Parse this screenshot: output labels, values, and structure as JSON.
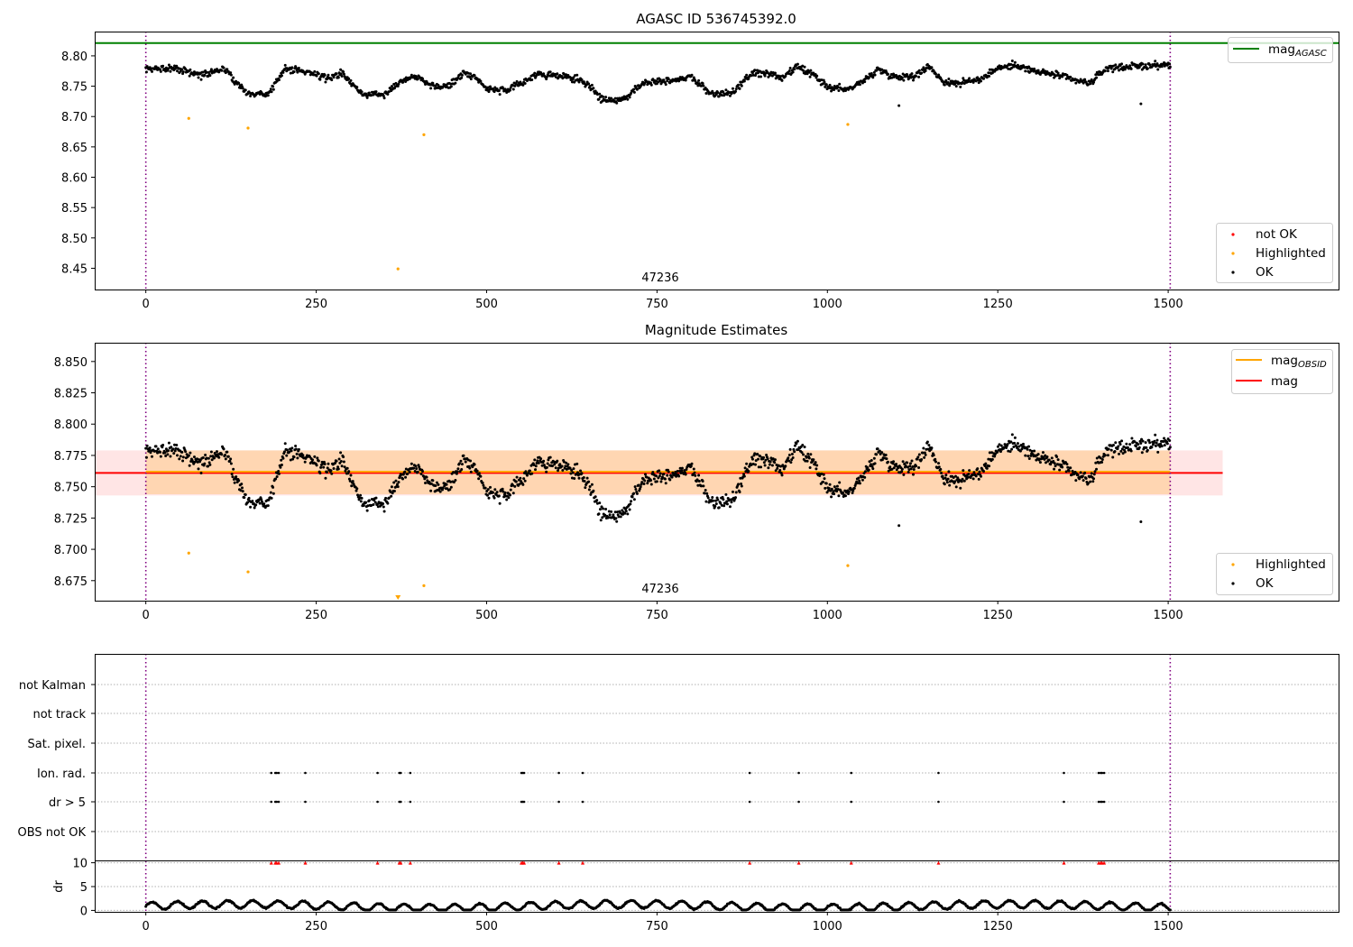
{
  "chart_data": [
    {
      "type": "scatter",
      "title": "AGASC ID 536745392.0",
      "obsid_label": "47236",
      "xlim": [
        -75,
        1750
      ],
      "ylim": [
        8.415,
        8.84
      ],
      "x_ticks": [
        0,
        250,
        500,
        750,
        1000,
        1250,
        1500
      ],
      "y_ticks": [
        8.45,
        8.5,
        8.55,
        8.6,
        8.65,
        8.7,
        8.75,
        8.8
      ],
      "obs_start": 0,
      "obs_end": 1503,
      "mag_agasc": 8.821,
      "series": [
        {
          "name": "not OK",
          "color": "#ff0000",
          "points": []
        },
        {
          "name": "Highlighted",
          "color": "#ffa500",
          "points": [
            [
              63,
              8.697
            ],
            [
              150,
              8.681
            ],
            [
              370,
              8.449
            ],
            [
              408,
              8.67
            ],
            [
              1030,
              8.687
            ]
          ]
        },
        {
          "name": "OK",
          "color": "#000000",
          "n": 1500,
          "outliers": [
            [
              1105,
              8.718
            ],
            [
              1460,
              8.721
            ]
          ]
        }
      ],
      "legend_line": {
        "label": "mag",
        "sub": "AGASC",
        "color": "#008000",
        "position": "top-right"
      },
      "legend_points": {
        "position": "lower-right"
      }
    },
    {
      "type": "scatter",
      "title": "Magnitude Estimates",
      "obsid_label": "47236",
      "xlim": [
        -75,
        1750
      ],
      "ylim": [
        8.659,
        8.865
      ],
      "x_ticks": [
        0,
        250,
        500,
        750,
        1000,
        1250,
        1500
      ],
      "y_ticks": [
        8.675,
        8.7,
        8.725,
        8.75,
        8.775,
        8.8,
        8.825,
        8.85
      ],
      "obs_start": 0,
      "obs_end": 1503,
      "mag": {
        "value": 8.761,
        "band": [
          8.743,
          8.779
        ],
        "x_end": 1580,
        "color": "#ff0000"
      },
      "mag_obsid": {
        "value": 8.762,
        "band": [
          8.744,
          8.779
        ],
        "x_end": 1503,
        "color": "#ffa500"
      },
      "series": [
        {
          "name": "Highlighted",
          "color": "#ffa500",
          "points": [
            [
              63,
              8.697
            ],
            [
              150,
              8.682
            ],
            [
              408,
              8.671
            ],
            [
              1030,
              8.687
            ]
          ],
          "offscale": [
            [
              370,
              8.449
            ]
          ]
        },
        {
          "name": "OK",
          "color": "#000000",
          "n": 1500,
          "outliers": [
            [
              1105,
              8.719
            ],
            [
              1460,
              8.722
            ]
          ]
        }
      ],
      "legend_lines": [
        {
          "label": "mag",
          "sub": "OBSID",
          "color": "#ffa500"
        },
        {
          "label": "mag",
          "sub": "",
          "color": "#ff0000"
        }
      ],
      "legend_points": {
        "position": "lower-right"
      }
    },
    {
      "type": "scatter",
      "title": "",
      "xlim": [
        -75,
        1750
      ],
      "x_ticks": [
        0,
        250,
        500,
        750,
        1000,
        1250,
        1500
      ],
      "obs_start": 0,
      "obs_end": 1503,
      "flag_rows": [
        "not Kalman",
        "not track",
        "Sat. pixel.",
        "Ion. rad.",
        "dr > 5",
        "OBS not OK"
      ],
      "flag_hits": {
        "Ion. rad.": [
          184,
          190,
          192,
          195,
          234,
          340,
          372,
          374,
          388,
          551,
          553,
          555,
          606,
          641,
          886,
          958,
          1035,
          1163,
          1347,
          1398,
          1401,
          1403,
          1406
        ],
        "dr > 5": [
          184,
          190,
          192,
          195,
          234,
          340,
          372,
          374,
          388,
          551,
          553,
          555,
          606,
          641,
          886,
          958,
          1035,
          1163,
          1347,
          1398,
          1401,
          1403,
          1406
        ]
      },
      "dr_ylabel": "dr",
      "dr_ylim": [
        -0.3,
        10.3
      ],
      "dr_ticks": [
        0,
        5,
        10
      ],
      "dr_clipped": [
        184,
        190,
        192,
        195,
        234,
        340,
        372,
        374,
        388,
        551,
        553,
        555,
        606,
        641,
        886,
        958,
        1035,
        1163,
        1347,
        1398,
        1401,
        1403,
        1406
      ]
    }
  ]
}
